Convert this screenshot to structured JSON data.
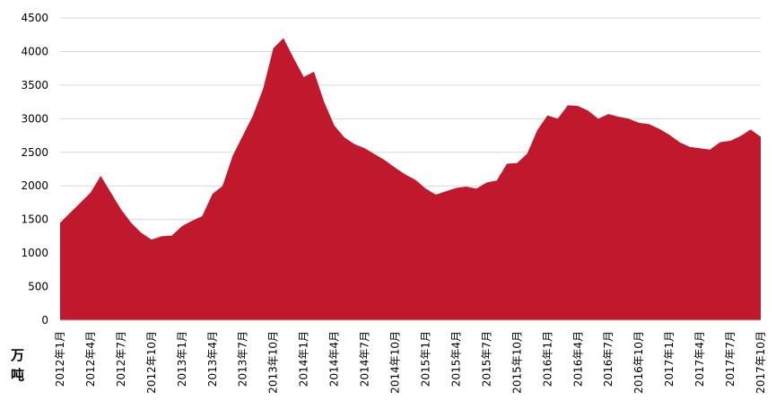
{
  "chart_data": {
    "type": "area",
    "title": "",
    "xlabel": "",
    "ylabel": "万吨",
    "ylim": [
      0,
      4500
    ],
    "yticks": [
      0,
      500,
      1000,
      1500,
      2000,
      2500,
      3000,
      3500,
      4000,
      4500
    ],
    "grid": true,
    "legend": "none",
    "color": "#c0182c",
    "x_tick_labels": [
      "2012年1月",
      "2012年4月",
      "2012年7月",
      "2012年10月",
      "2013年1月",
      "2013年4月",
      "2013年7月",
      "2013年10月",
      "2014年1月",
      "2014年4月",
      "2014年7月",
      "2014年10月",
      "2015年1月",
      "2015年4月",
      "2015年7月",
      "2015年10月",
      "2016年1月",
      "2016年4月",
      "2016年7月",
      "2016年10月",
      "2017年1月",
      "2017年4月",
      "2017年7月",
      "2017年10月"
    ],
    "series": [
      {
        "values": [
          1450,
          1600,
          1750,
          1900,
          2150,
          1900,
          1650,
          1450,
          1300,
          1200,
          1250,
          1260,
          1400,
          1480,
          1550,
          1880,
          2000,
          2450,
          2750,
          3050,
          3450,
          4050,
          4200,
          3900,
          3620,
          3700,
          3250,
          2900,
          2720,
          2620,
          2560,
          2470,
          2380,
          2270,
          2170,
          2090,
          1960,
          1870,
          1920,
          1970,
          1990,
          1960,
          2050,
          2080,
          2330,
          2340,
          2480,
          2830,
          3050,
          3000,
          3200,
          3190,
          3120,
          3000,
          3070,
          3030,
          3000,
          2940,
          2920,
          2850,
          2760,
          2650,
          2580,
          2560,
          2540,
          2650,
          2670,
          2740,
          2840,
          2730
        ]
      }
    ]
  }
}
